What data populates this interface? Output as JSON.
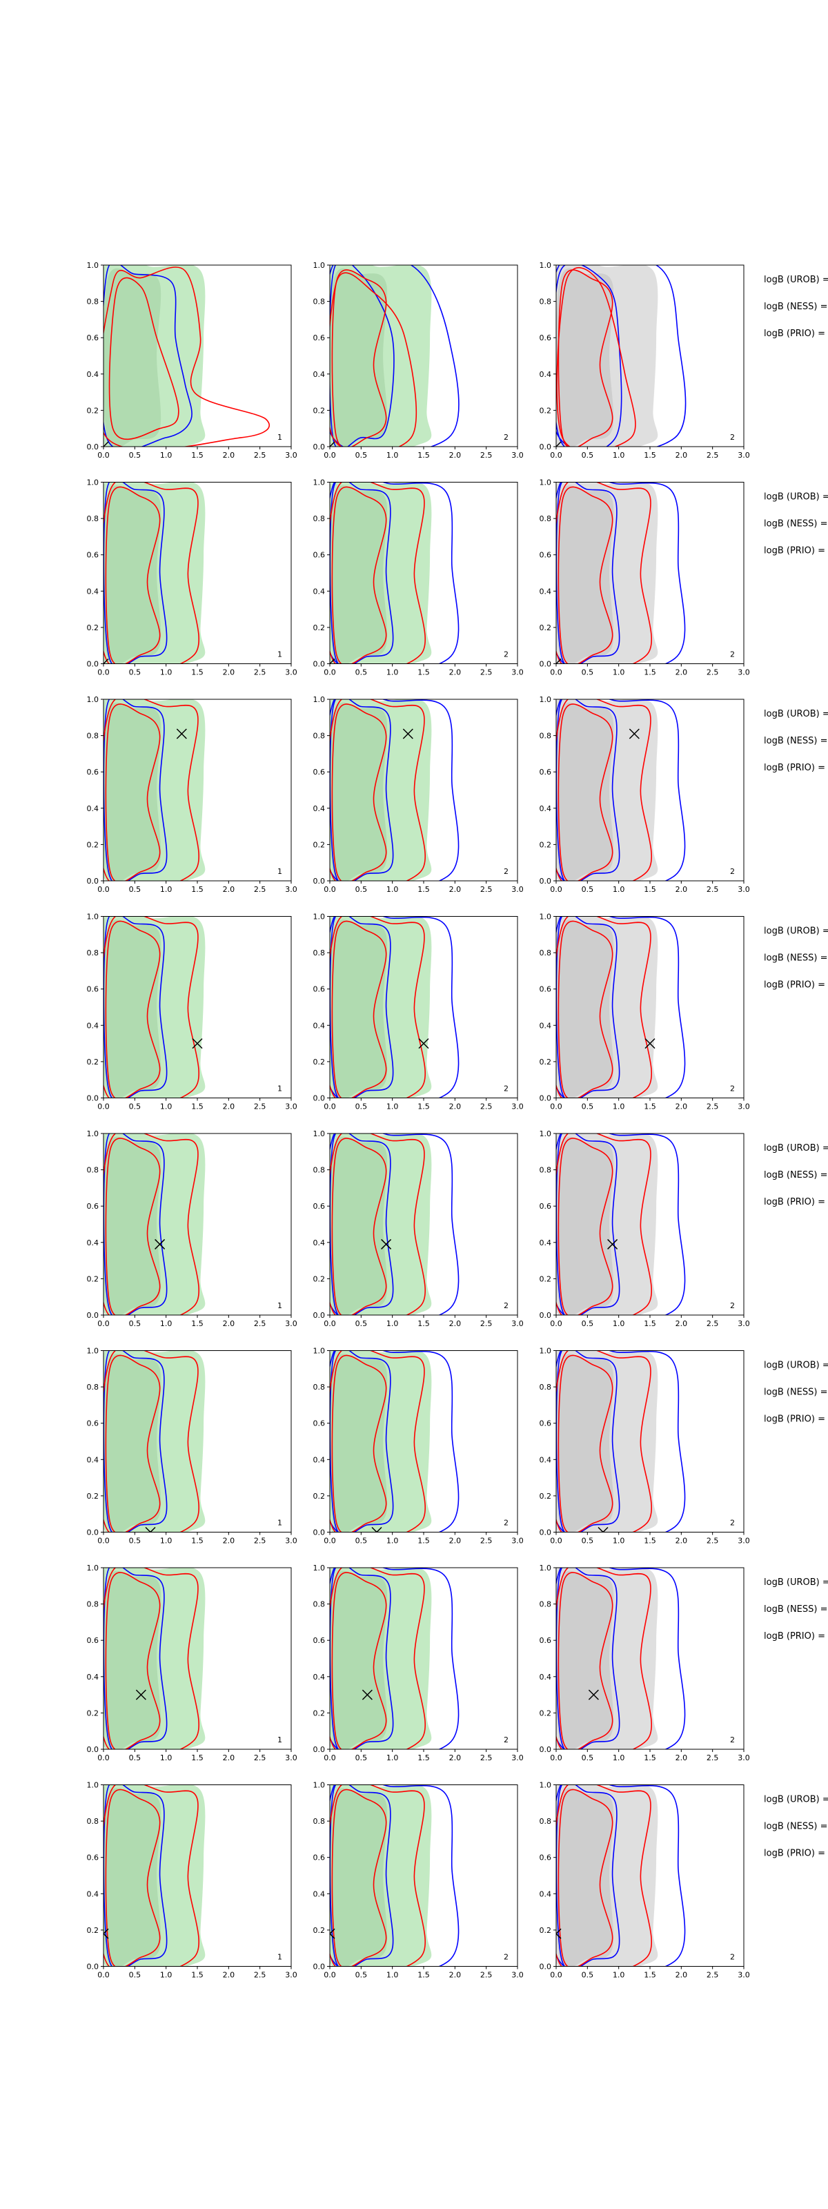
{
  "chart_data": {
    "type": "contour",
    "xlim": [
      0,
      3
    ],
    "ylim": [
      0,
      1
    ],
    "x_ticks": [
      "0.0",
      "0.5",
      "1.0",
      "1.5",
      "2.0",
      "2.5",
      "3.0"
    ],
    "y_ticks": [
      "0.0",
      "0.2",
      "0.4",
      "0.6",
      "0.8",
      "1.0"
    ],
    "row_labels": [
      "logB (UROB) =",
      "logB (NESS) =",
      "logB (PRIO) ="
    ],
    "colors": {
      "green_fill": "#b9e6b9",
      "grey_fill": "#d9d9d9",
      "blue_line": "#0000ff",
      "red_line": "#ff0000",
      "marker": "#000000"
    },
    "grid": false,
    "rows": [
      {
        "marker": [
          0.0,
          0.0
        ],
        "panels": [
          {
            "fill": "green",
            "label": "1",
            "blue_outer": [
              [
                0.05,
                0.05
              ],
              [
                0.05,
                0.95
              ],
              [
                0.5,
                0.95
              ],
              [
                1.1,
                0.9
              ],
              [
                1.15,
                0.6
              ],
              [
                1.3,
                0.35
              ],
              [
                1.4,
                0.15
              ],
              [
                1.0,
                0.05
              ]
            ],
            "red_outer": [
              [
                0.05,
                0.05
              ],
              [
                0.15,
                0.9
              ],
              [
                0.6,
                0.93
              ],
              [
                1.3,
                0.97
              ],
              [
                1.55,
                0.6
              ],
              [
                1.45,
                0.3
              ],
              [
                2.6,
                0.15
              ],
              [
                2.2,
                0.05
              ]
            ],
            "red_inner": [
              [
                0.15,
                0.1
              ],
              [
                0.2,
                0.85
              ],
              [
                0.6,
                0.88
              ],
              [
                0.85,
                0.6
              ],
              [
                1.2,
                0.2
              ],
              [
                0.9,
                0.1
              ]
            ]
          },
          {
            "fill": "green",
            "label": "2",
            "blue_outer": [
              [
                0.05,
                0.05
              ],
              [
                0.05,
                0.95
              ],
              [
                0.5,
                0.95
              ],
              [
                1.0,
                0.6
              ],
              [
                0.9,
                0.1
              ],
              [
                0.5,
                0.05
              ]
            ],
            "blue_outer2": [
              [
                0.05,
                0.05
              ],
              [
                0.05,
                1.0
              ],
              [
                1.3,
                1.0
              ],
              [
                1.9,
                0.6
              ],
              [
                1.9,
                0.05
              ]
            ],
            "red_outer": [
              [
                0.05,
                0.05
              ],
              [
                0.1,
                0.9
              ],
              [
                0.7,
                0.85
              ],
              [
                1.2,
                0.6
              ],
              [
                1.3,
                0.05
              ]
            ]
          },
          {
            "fill": "grey",
            "label": "2",
            "blue_outer": [
              [
                0.05,
                0.05
              ],
              [
                0.05,
                0.95
              ],
              [
                0.8,
                0.9
              ],
              [
                1.0,
                0.6
              ],
              [
                0.95,
                0.05
              ]
            ],
            "blue_outer2": [
              [
                0.05,
                0.05
              ],
              [
                0.05,
                1.0
              ],
              [
                1.6,
                1.0
              ],
              [
                1.95,
                0.6
              ],
              [
                1.9,
                0.05
              ]
            ],
            "red_outer": [
              [
                0.1,
                0.05
              ],
              [
                0.15,
                0.9
              ],
              [
                0.7,
                0.9
              ],
              [
                1.1,
                0.4
              ],
              [
                1.2,
                0.05
              ]
            ]
          }
        ]
      },
      {
        "marker": [
          0.0,
          0.0
        ],
        "panels": [
          {
            "fill": "green",
            "label": "1"
          },
          {
            "fill": "green",
            "label": "2"
          },
          {
            "fill": "grey",
            "label": "2"
          }
        ]
      },
      {
        "marker": [
          1.25,
          0.81
        ],
        "panels": [
          {
            "fill": "green",
            "label": "1"
          },
          {
            "fill": "green",
            "label": "2"
          },
          {
            "fill": "grey",
            "label": "2"
          }
        ]
      },
      {
        "marker": [
          1.5,
          0.3
        ],
        "panels": [
          {
            "fill": "green",
            "label": "1"
          },
          {
            "fill": "green",
            "label": "2"
          },
          {
            "fill": "grey",
            "label": "2"
          }
        ]
      },
      {
        "marker": [
          0.9,
          0.39
        ],
        "panels": [
          {
            "fill": "green",
            "label": "1"
          },
          {
            "fill": "green",
            "label": "2"
          },
          {
            "fill": "grey",
            "label": "2"
          }
        ]
      },
      {
        "marker": [
          0.75,
          0.0
        ],
        "panels": [
          {
            "fill": "green",
            "label": "1"
          },
          {
            "fill": "green",
            "label": "2"
          },
          {
            "fill": "grey",
            "label": "2"
          }
        ]
      },
      {
        "marker": [
          0.6,
          0.3
        ],
        "panels": [
          {
            "fill": "green",
            "label": "1"
          },
          {
            "fill": "green",
            "label": "2"
          },
          {
            "fill": "grey",
            "label": "2"
          }
        ]
      },
      {
        "marker": [
          0.0,
          0.18
        ],
        "panels": [
          {
            "fill": "green",
            "label": "1"
          },
          {
            "fill": "green",
            "label": "2"
          },
          {
            "fill": "grey",
            "label": "2"
          }
        ]
      }
    ]
  }
}
